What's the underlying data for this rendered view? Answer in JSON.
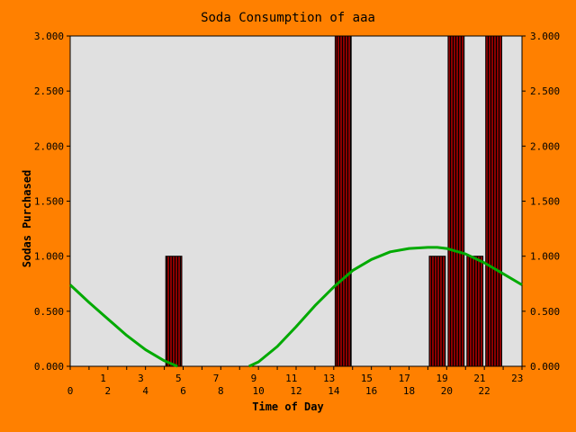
{
  "chart_data": {
    "type": "bar",
    "title": "Soda Consumption of aaa",
    "xlabel": "Time of Day",
    "ylabel": "Sodas Purchased",
    "x_ticks": [
      "0",
      "1",
      "2",
      "3",
      "4",
      "5",
      "6",
      "7",
      "8",
      "9",
      "10",
      "11",
      "12",
      "13",
      "14",
      "15",
      "16",
      "17",
      "18",
      "19",
      "20",
      "21",
      "22",
      "23"
    ],
    "y_ticks": [
      "0.000",
      "0.500",
      "1.000",
      "1.500",
      "2.000",
      "2.500",
      "3.000"
    ],
    "ylim": [
      0,
      3
    ],
    "xlim": [
      0,
      24
    ],
    "bars": [
      {
        "hour": 5,
        "value": 1
      },
      {
        "hour": 14,
        "value": 3
      },
      {
        "hour": 19,
        "value": 1
      },
      {
        "hour": 20,
        "value": 3
      },
      {
        "hour": 21,
        "value": 1
      },
      {
        "hour": 22,
        "value": 3
      }
    ],
    "trend_series": {
      "type": "line",
      "x": [
        0,
        1,
        2,
        3,
        4,
        5,
        5.7,
        9.5,
        10,
        11,
        12,
        13,
        14,
        15,
        16,
        17,
        18,
        19,
        19.5,
        20,
        21,
        22,
        23,
        24
      ],
      "y": [
        0.74,
        0.58,
        0.43,
        0.28,
        0.15,
        0.05,
        0.0,
        0.0,
        0.04,
        0.18,
        0.36,
        0.55,
        0.72,
        0.87,
        0.97,
        1.04,
        1.07,
        1.08,
        1.08,
        1.07,
        1.02,
        0.94,
        0.84,
        0.74
      ]
    },
    "colors": {
      "background": "#ff8000",
      "plot_area": "#e0e0e0",
      "bar_fill": "#8b0000",
      "bar_stripe": "#000000",
      "trend_line": "#00aa00",
      "text": "#000000"
    },
    "grid": false,
    "secondary_y_axis": true
  }
}
